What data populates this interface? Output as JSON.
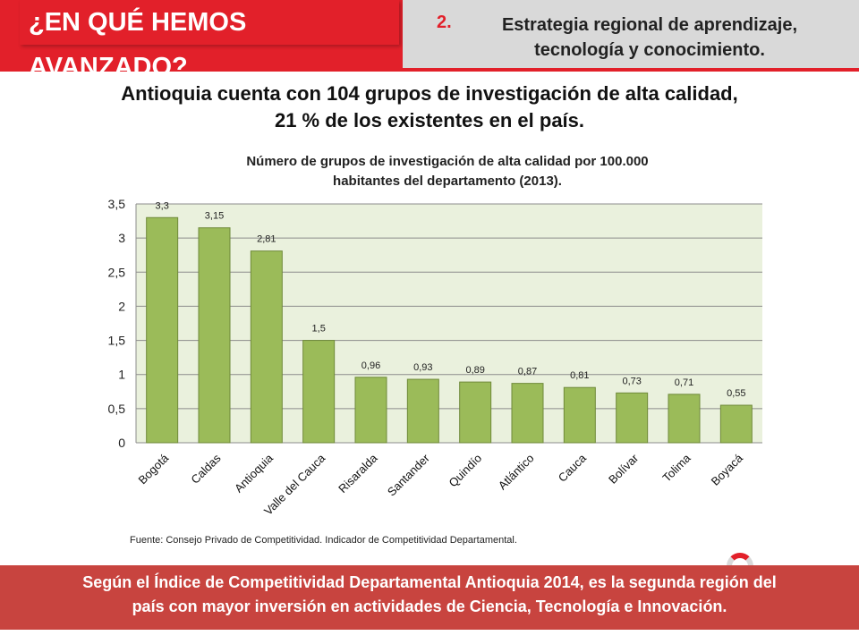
{
  "header": {
    "title": "¿EN QUÉ HEMOS AVANZADO?",
    "strategy_number": "2.",
    "strategy_text": "Estrategia regional de aprendizaje, tecnología y conocimiento."
  },
  "headline": {
    "line1": "Antioquia cuenta con 104 grupos de investigación de alta calidad,",
    "line2": "21 % de los existentes en el país."
  },
  "chart_data": {
    "type": "bar",
    "title_line1": "Número de grupos de investigación de alta calidad por 100.000",
    "title_line2": "habitantes del departamento (2013).",
    "categories": [
      "Bogotá",
      "Caldas",
      "Antioquia",
      "Valle del Cauca",
      "Risaralda",
      "Santander",
      "Quindío",
      "Atlántico",
      "Cauca",
      "Bolívar",
      "Tolima",
      "Boyacá"
    ],
    "values": [
      3.3,
      3.15,
      2.81,
      1.5,
      0.96,
      0.93,
      0.89,
      0.87,
      0.81,
      0.73,
      0.71,
      0.55
    ],
    "data_labels": [
      "3,3",
      "3,15",
      "2,81",
      "1,5",
      "0,96",
      "0,93",
      "0,89",
      "0,87",
      "0,81",
      "0,73",
      "0,71",
      "0,55"
    ],
    "y_ticks": [
      "0",
      "0,5",
      "1",
      "1,5",
      "2",
      "2,5",
      "3",
      "3,5"
    ],
    "ylim": [
      0,
      3.5
    ],
    "grid": true,
    "bar_color": "#9bbb59",
    "plot_bg": "#eaf1dd"
  },
  "source": "Fuente: Consejo Privado de Competitividad. Indicador de Competitividad Departamental.",
  "footer": {
    "line1": "Según el Índice de Competitividad Departamental Antioquia 2014, es la segunda región del",
    "line2": "país con mayor inversión en actividades de Ciencia, Tecnología e Innovación."
  },
  "colors": {
    "accent": "#e2202a",
    "footer_bg": "#c8443f"
  }
}
